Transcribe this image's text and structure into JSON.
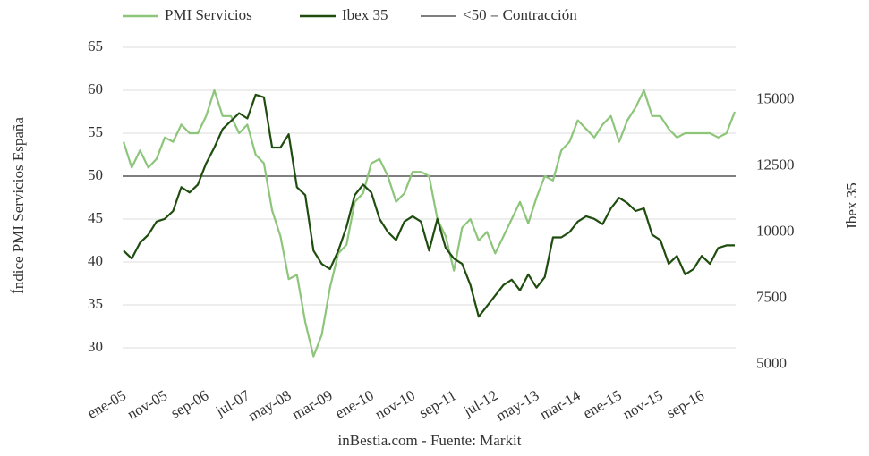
{
  "chart_data": {
    "type": "line",
    "caption": "inBestia.com - Fuente: Markit",
    "ylabel": "Índice PMI Servicios España",
    "y2label": "Ibex 35",
    "categories": [
      "ene-05",
      null,
      null,
      null,
      null,
      "nov-05",
      null,
      null,
      null,
      null,
      "sep-06",
      null,
      null,
      null,
      null,
      "jul-07",
      null,
      null,
      null,
      null,
      "may-08",
      null,
      null,
      null,
      null,
      "mar-09",
      null,
      null,
      null,
      null,
      "ene-10",
      null,
      null,
      null,
      null,
      "nov-10",
      null,
      null,
      null,
      null,
      "sep-11",
      null,
      null,
      null,
      null,
      "jul-12",
      null,
      null,
      null,
      null,
      "may-13",
      null,
      null,
      null,
      null,
      "mar-14",
      null,
      null,
      null,
      null,
      "ene-15",
      null,
      null,
      null,
      null,
      "nov-15",
      null,
      null,
      null,
      null,
      "sep-16",
      null,
      null,
      null,
      null
    ],
    "series": [
      {
        "name": "PMI Servicios",
        "color": "#8dc57a",
        "values": [
          54,
          51,
          53,
          51,
          52,
          54.5,
          54,
          56,
          55,
          55,
          57,
          60,
          57,
          57,
          55,
          56,
          52.5,
          51.5,
          46,
          43,
          38,
          38.5,
          33,
          29,
          31.5,
          37,
          41,
          42,
          47,
          48,
          51.5,
          52,
          50,
          47,
          48,
          50.5,
          50.5,
          50,
          45,
          43,
          39,
          44,
          45,
          42.5,
          43.5,
          41,
          43,
          45,
          47,
          44.5,
          47.5,
          50,
          49.5,
          53,
          54,
          56.5,
          55.5,
          54.5,
          56,
          57,
          54,
          56.5,
          58,
          60,
          57,
          57,
          55.5,
          54.5,
          55,
          55,
          55,
          55,
          54.5,
          55,
          57.5
        ]
      },
      {
        "name": "Ibex 35",
        "color": "#1f4d0f",
        "axis": "y2",
        "values": [
          9300,
          9000,
          9600,
          9900,
          10400,
          10500,
          10800,
          11700,
          11500,
          11800,
          12600,
          13200,
          13900,
          14200,
          14500,
          14300,
          15200,
          15100,
          13200,
          13200,
          13700,
          11700,
          11400,
          9300,
          8800,
          8600,
          9300,
          10200,
          11400,
          11800,
          11500,
          10500,
          10000,
          9700,
          10400,
          10600,
          10400,
          9300,
          10500,
          9400,
          9000,
          8800,
          8000,
          6800,
          7200,
          7600,
          8000,
          8200,
          7800,
          8400,
          7900,
          8300,
          9800,
          9800,
          10000,
          10400,
          10600,
          10500,
          10300,
          10900,
          11300,
          11100,
          10800,
          10900,
          9900,
          9700,
          8800,
          9100,
          8400,
          8600,
          9100,
          8800,
          9400,
          9500,
          9500
        ]
      }
    ],
    "threshold": {
      "name": "<50 = Contracción",
      "value": 50,
      "color": "#333333"
    },
    "ylim": [
      25,
      67.5
    ],
    "yticks": [
      30,
      35,
      40,
      45,
      50,
      55,
      60,
      65
    ],
    "y2lim": [
      4000,
      17800
    ],
    "y2ticks": [
      5000,
      7500,
      10000,
      12500,
      15000
    ],
    "grid": true
  }
}
